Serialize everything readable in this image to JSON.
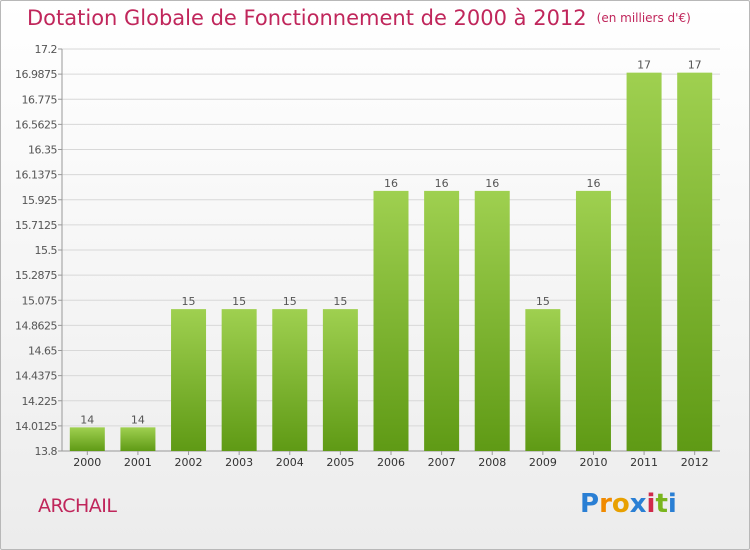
{
  "header": {
    "title": "Dotation Globale de Fonctionnement de 2000 à 2012",
    "unit": "(en milliers d'€)"
  },
  "footer": {
    "commune": "ARCHAIL",
    "logo": "Proxiti"
  },
  "colors": {
    "title": "#c0265b",
    "bar_light": "#9fd050",
    "bar_dark": "#5f9a15",
    "grid": "#d8d8d8"
  },
  "chart_data": {
    "type": "bar",
    "title": "Dotation Globale de Fonctionnement de 2000 à 2012",
    "xlabel": "",
    "ylabel": "",
    "categories": [
      "2000",
      "2001",
      "2002",
      "2003",
      "2004",
      "2005",
      "2006",
      "2007",
      "2008",
      "2009",
      "2010",
      "2011",
      "2012"
    ],
    "values": [
      14,
      14,
      15,
      15,
      15,
      15,
      16,
      16,
      16,
      15,
      16,
      17,
      17
    ],
    "data_labels": [
      "14",
      "14",
      "15",
      "15",
      "15",
      "15",
      "16",
      "16",
      "16",
      "15",
      "16",
      "17",
      "17"
    ],
    "ylim": [
      13.8,
      17.2
    ],
    "yticks": [
      "13.8",
      "14.0125",
      "14.225",
      "14.4375",
      "14.65",
      "14.8625",
      "15.075",
      "15.2875",
      "15.5",
      "15.7125",
      "15.925",
      "16.1375",
      "16.35",
      "16.5625",
      "16.775",
      "16.9875",
      "17.2"
    ],
    "grid": true,
    "legend": "none"
  }
}
